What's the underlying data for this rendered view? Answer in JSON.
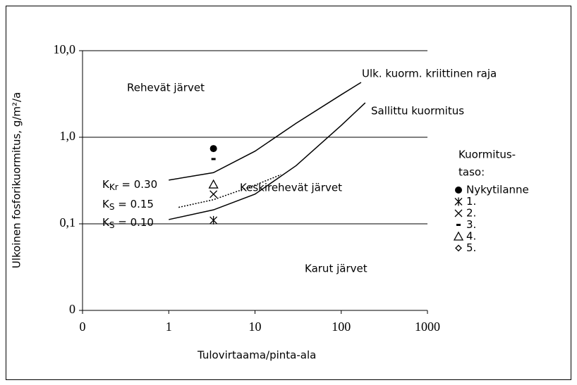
{
  "chart_data": {
    "type": "scatter",
    "x_label": "Tulovirtaama/pinta-ala",
    "y_label": "Ulkoinen fosforikuormitus, g/m²/a",
    "log_x": true,
    "log_y": true,
    "grid": true,
    "xlim": [
      0.1,
      1000
    ],
    "xticks": [
      {
        "value": 0.1,
        "label": "0"
      },
      1,
      10,
      100,
      1000
    ],
    "ylim": [
      0.01,
      10
    ],
    "yticks": [
      {
        "value": 0.01,
        "label": "0"
      },
      {
        "value": 0.1,
        "label": "0,1"
      },
      {
        "value": 1,
        "label": "1,0"
      },
      {
        "value": 10,
        "label": "10,0"
      }
    ],
    "lines": [
      {
        "name": "Ulk. kuorm. kriittinen raja",
        "dash": "solid",
        "x": [
          1,
          3.3,
          10,
          30,
          100,
          170
        ],
        "values": [
          0.32,
          0.39,
          0.69,
          1.45,
          3.1,
          4.3
        ]
      },
      {
        "name": "Sallittu kuormitus",
        "dash": "solid",
        "x": [
          1,
          3.3,
          10,
          30,
          100,
          190
        ],
        "values": [
          0.112,
          0.145,
          0.22,
          0.47,
          1.37,
          2.5
        ]
      },
      {
        "dash": "dotted",
        "x": [
          1.3,
          3.3,
          10,
          20
        ],
        "values": [
          0.155,
          0.19,
          0.28,
          0.37
        ]
      }
    ],
    "legend_title": [
      "Kuormitus-",
      "taso:"
    ],
    "series": [
      {
        "name": "Nykytilanne",
        "marker": "dot",
        "x": [
          3.3
        ],
        "values": [
          0.74
        ]
      },
      {
        "name": "1.",
        "marker": "asterisk",
        "x": [
          3.3
        ],
        "values": [
          0.11
        ]
      },
      {
        "name": "2.",
        "marker": "cross",
        "x": [
          3.3
        ],
        "values": [
          0.22
        ]
      },
      {
        "name": "3.",
        "marker": "dash",
        "x": [
          3.3
        ],
        "values": [
          0.56
        ]
      },
      {
        "name": "4.",
        "marker": "triangle",
        "x": [
          3.3
        ],
        "values": [
          0.285
        ]
      },
      {
        "name": "5.",
        "marker": "diamond",
        "x": [
          3.3
        ],
        "values": [
          null
        ]
      }
    ],
    "annotations": [
      "Rehevät järvet",
      "Keskirehevät järvet",
      "Karut järvet"
    ],
    "k_labels": [
      {
        "k": "K",
        "sub": "Kr",
        "text": " = 0.30"
      },
      {
        "k": "K",
        "sub": "S",
        "text": " = 0.15"
      },
      {
        "k": "K",
        "sub": "S",
        "text": " = 0.10"
      }
    ]
  }
}
